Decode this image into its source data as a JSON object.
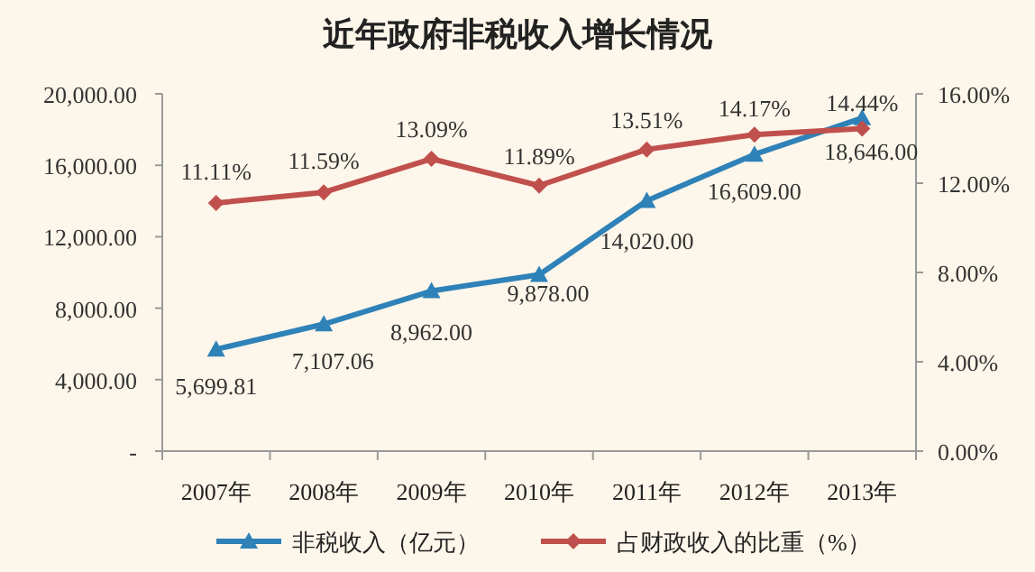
{
  "chart_data": {
    "type": "line",
    "title": "近年政府非税收入增长情况",
    "categories": [
      "2007年",
      "2008年",
      "2009年",
      "2010年",
      "2011年",
      "2012年",
      "2013年"
    ],
    "series": [
      {
        "name": "非税收入（亿元）",
        "color": "#2e82b8",
        "marker": "triangle",
        "values": [
          5699.81,
          7107.06,
          8962.0,
          9878.0,
          14020.0,
          16609.0,
          18646.0
        ],
        "value_labels": [
          "5,699.81",
          "7,107.06",
          "8,962.00",
          "9,878.00",
          "14,020.00",
          "16,609.00",
          "18,646.00"
        ]
      },
      {
        "name": "占财政收入的比重（%）",
        "color": "#c0504d",
        "marker": "diamond",
        "axis": "y2",
        "values": [
          11.11,
          11.59,
          13.09,
          11.89,
          13.51,
          14.17,
          14.44
        ],
        "value_labels": [
          "11.11%",
          "11.59%",
          "13.09%",
          "11.89%",
          "13.51%",
          "14.17%",
          "14.44%"
        ]
      }
    ],
    "ylim": [
      0,
      20000
    ],
    "yticks": [
      {
        "value": 0,
        "label": "-"
      },
      {
        "value": 4000,
        "label": "4,000.00"
      },
      {
        "value": 8000,
        "label": "8,000.00"
      },
      {
        "value": 12000,
        "label": "12,000.00"
      },
      {
        "value": 16000,
        "label": "16,000.00"
      },
      {
        "value": 20000,
        "label": "20,000.00"
      }
    ],
    "y2lim": [
      0,
      16
    ],
    "y2ticks": [
      {
        "value": 0,
        "label": "0.00%"
      },
      {
        "value": 4,
        "label": "4.00%"
      },
      {
        "value": 8,
        "label": "8.00%"
      },
      {
        "value": 12,
        "label": "12.00%"
      },
      {
        "value": 16,
        "label": "16.00%"
      }
    ],
    "grid": false,
    "legend": "bottom",
    "line_style": "solid"
  }
}
